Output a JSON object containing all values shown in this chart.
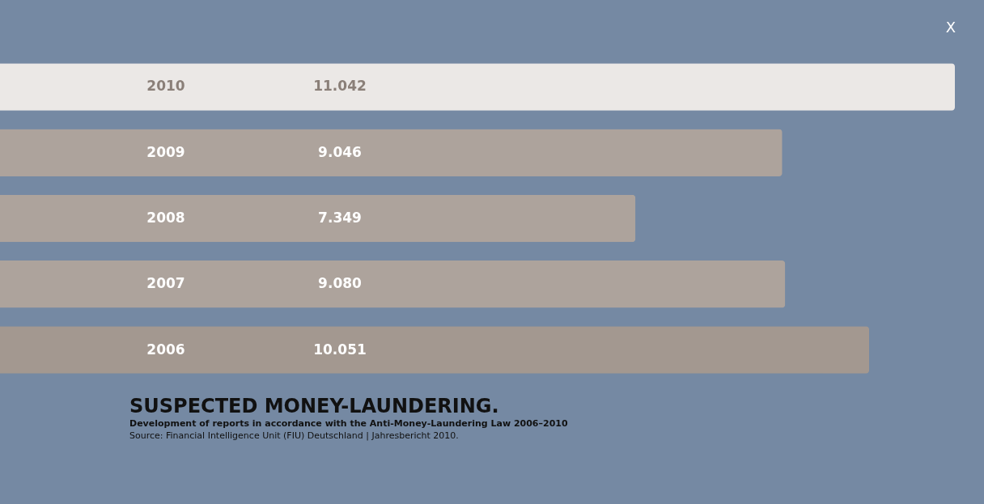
{
  "chart_data": {
    "type": "bar",
    "orientation": "horizontal",
    "title": "SUSPECTED MONEY-LAUNDERING.",
    "subtitle": "Development of reports in accordance with the Anti-Money-Laundering Law 2006–2010",
    "annotations": [
      "Source: Financial Intelligence Unit (FIU) Deutschland | Jahresbericht 2010.",
      "X"
    ],
    "categories": [
      "2010",
      "2009",
      "2008",
      "2007",
      "2006"
    ],
    "values": [
      11042,
      9046,
      7349,
      9080,
      10051
    ],
    "value_labels": [
      "11.042",
      "9.046",
      "7.349",
      "9.080",
      "10.051"
    ],
    "colors": [
      "#ebe8e6",
      "#ada39c",
      "#ada39c",
      "#ada39c",
      "#a39890"
    ]
  }
}
